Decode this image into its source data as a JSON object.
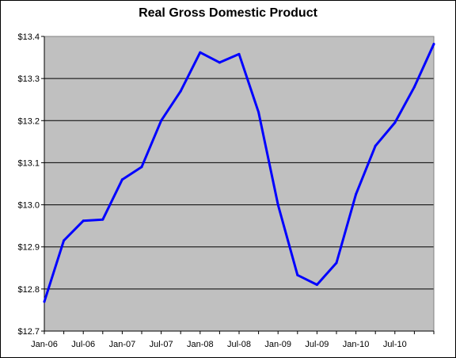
{
  "chart_data": {
    "type": "line",
    "title": "Real Gross Domestic Product",
    "xlabel": "",
    "ylabel": "",
    "x": [
      "Jan-06",
      "Apr-06",
      "Jul-06",
      "Oct-06",
      "Jan-07",
      "Apr-07",
      "Jul-07",
      "Oct-07",
      "Jan-08",
      "Apr-08",
      "Jul-08",
      "Oct-08",
      "Jan-09",
      "Apr-09",
      "Jul-09",
      "Oct-09",
      "Jan-10",
      "Apr-10",
      "Jul-10",
      "Oct-10",
      "Jan-11"
    ],
    "x_tick_labels": [
      "Jan-06",
      "Jul-06",
      "Jan-07",
      "Jul-07",
      "Jan-08",
      "Jul-08",
      "Jan-09",
      "Jul-09",
      "Jan-10",
      "Jul-10"
    ],
    "series": [
      {
        "values": [
          12.77,
          12.915,
          12.962,
          12.965,
          13.06,
          13.09,
          13.2,
          13.27,
          13.362,
          13.338,
          13.358,
          13.22,
          13.0,
          12.833,
          12.81,
          12.862,
          13.025,
          13.14,
          13.195,
          13.28,
          13.382
        ],
        "color": "#0000ff"
      }
    ],
    "y_tick_labels": [
      "$12.7",
      "$12.8",
      "$12.9",
      "$13.0",
      "$13.1",
      "$13.2",
      "$13.3",
      "$13.4"
    ],
    "y_ticks": [
      12.7,
      12.8,
      12.9,
      13.0,
      13.1,
      13.2,
      13.3,
      13.4
    ],
    "ylim": [
      12.7,
      13.4
    ],
    "grid": "horizontal",
    "legend": "none",
    "plot_background": "#c0c0c0"
  }
}
